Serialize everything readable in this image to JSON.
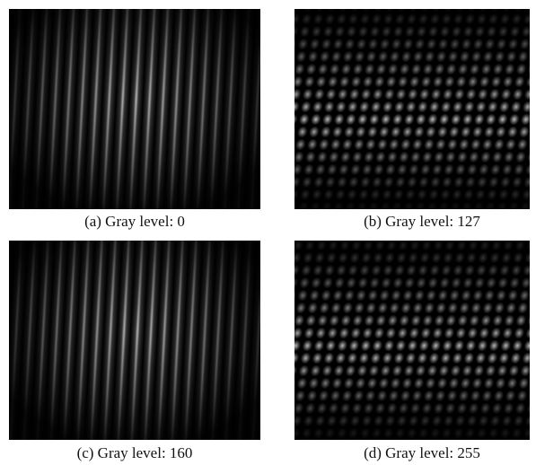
{
  "figure": {
    "panels": [
      {
        "caption": "(a) Gray level: 0"
      },
      {
        "caption": "(b) Gray level: 127"
      },
      {
        "caption": "(c) Gray level: 160"
      },
      {
        "caption": "(d) Gray level: 255"
      }
    ]
  }
}
